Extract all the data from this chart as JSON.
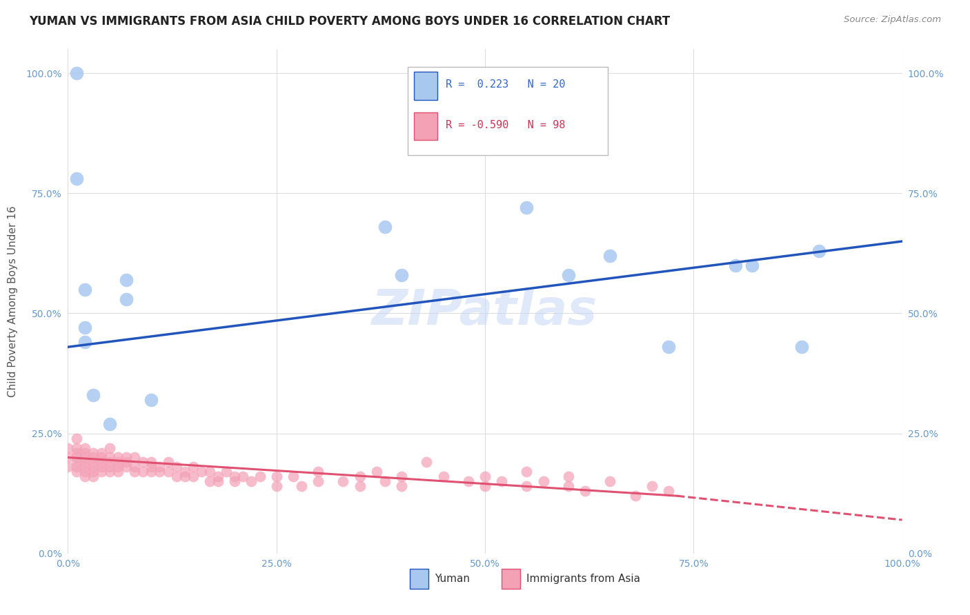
{
  "title": "YUMAN VS IMMIGRANTS FROM ASIA CHILD POVERTY AMONG BOYS UNDER 16 CORRELATION CHART",
  "source": "Source: ZipAtlas.com",
  "ylabel": "Child Poverty Among Boys Under 16",
  "legend_blue_R": "0.223",
  "legend_blue_N": "20",
  "legend_pink_R": "-0.590",
  "legend_pink_N": "98",
  "legend_label_blue": "Yuman",
  "legend_label_pink": "Immigrants from Asia",
  "blue_color": "#a8c8f0",
  "pink_color": "#f4a0b5",
  "blue_line_color": "#2255bb",
  "pink_line_color": "#e05070",
  "watermark": "ZIPatlas",
  "blue_points_pct": [
    [
      1,
      100
    ],
    [
      1,
      78
    ],
    [
      2,
      55
    ],
    [
      2,
      47
    ],
    [
      2,
      44
    ],
    [
      3,
      33
    ],
    [
      5,
      27
    ],
    [
      7,
      57
    ],
    [
      7,
      53
    ],
    [
      10,
      32
    ],
    [
      38,
      68
    ],
    [
      40,
      58
    ],
    [
      55,
      72
    ],
    [
      60,
      58
    ],
    [
      65,
      62
    ],
    [
      72,
      43
    ],
    [
      80,
      60
    ],
    [
      82,
      60
    ],
    [
      88,
      43
    ],
    [
      90,
      63
    ]
  ],
  "pink_points_pct": [
    [
      0,
      22
    ],
    [
      0,
      20
    ],
    [
      0,
      18
    ],
    [
      1,
      24
    ],
    [
      1,
      22
    ],
    [
      1,
      21
    ],
    [
      1,
      20
    ],
    [
      1,
      19
    ],
    [
      1,
      18
    ],
    [
      1,
      17
    ],
    [
      2,
      22
    ],
    [
      2,
      21
    ],
    [
      2,
      20
    ],
    [
      2,
      19
    ],
    [
      2,
      18
    ],
    [
      2,
      17
    ],
    [
      2,
      16
    ],
    [
      3,
      21
    ],
    [
      3,
      20
    ],
    [
      3,
      19
    ],
    [
      3,
      18
    ],
    [
      3,
      17
    ],
    [
      3,
      16
    ],
    [
      4,
      21
    ],
    [
      4,
      20
    ],
    [
      4,
      19
    ],
    [
      4,
      18
    ],
    [
      4,
      17
    ],
    [
      5,
      22
    ],
    [
      5,
      20
    ],
    [
      5,
      19
    ],
    [
      5,
      18
    ],
    [
      5,
      17
    ],
    [
      6,
      20
    ],
    [
      6,
      19
    ],
    [
      6,
      18
    ],
    [
      6,
      17
    ],
    [
      7,
      20
    ],
    [
      7,
      19
    ],
    [
      7,
      18
    ],
    [
      8,
      20
    ],
    [
      8,
      18
    ],
    [
      8,
      17
    ],
    [
      9,
      19
    ],
    [
      9,
      17
    ],
    [
      10,
      19
    ],
    [
      10,
      18
    ],
    [
      10,
      17
    ],
    [
      11,
      18
    ],
    [
      11,
      17
    ],
    [
      12,
      19
    ],
    [
      12,
      17
    ],
    [
      13,
      18
    ],
    [
      13,
      16
    ],
    [
      14,
      17
    ],
    [
      14,
      16
    ],
    [
      15,
      18
    ],
    [
      15,
      16
    ],
    [
      16,
      17
    ],
    [
      17,
      17
    ],
    [
      17,
      15
    ],
    [
      18,
      16
    ],
    [
      18,
      15
    ],
    [
      19,
      17
    ],
    [
      20,
      16
    ],
    [
      20,
      15
    ],
    [
      21,
      16
    ],
    [
      22,
      15
    ],
    [
      23,
      16
    ],
    [
      25,
      16
    ],
    [
      25,
      14
    ],
    [
      27,
      16
    ],
    [
      28,
      14
    ],
    [
      30,
      15
    ],
    [
      30,
      17
    ],
    [
      33,
      15
    ],
    [
      35,
      16
    ],
    [
      35,
      14
    ],
    [
      37,
      17
    ],
    [
      38,
      15
    ],
    [
      40,
      16
    ],
    [
      40,
      14
    ],
    [
      43,
      19
    ],
    [
      45,
      16
    ],
    [
      48,
      15
    ],
    [
      50,
      16
    ],
    [
      50,
      14
    ],
    [
      52,
      15
    ],
    [
      55,
      17
    ],
    [
      55,
      14
    ],
    [
      57,
      15
    ],
    [
      60,
      16
    ],
    [
      60,
      14
    ],
    [
      62,
      13
    ],
    [
      65,
      15
    ],
    [
      68,
      12
    ],
    [
      70,
      14
    ],
    [
      72,
      13
    ]
  ],
  "blue_line_pct": [
    [
      0,
      43
    ],
    [
      100,
      65
    ]
  ],
  "pink_line_solid_pct": [
    [
      0,
      20
    ],
    [
      73,
      12
    ]
  ],
  "pink_line_dashed_pct": [
    [
      73,
      12
    ],
    [
      100,
      7
    ]
  ]
}
